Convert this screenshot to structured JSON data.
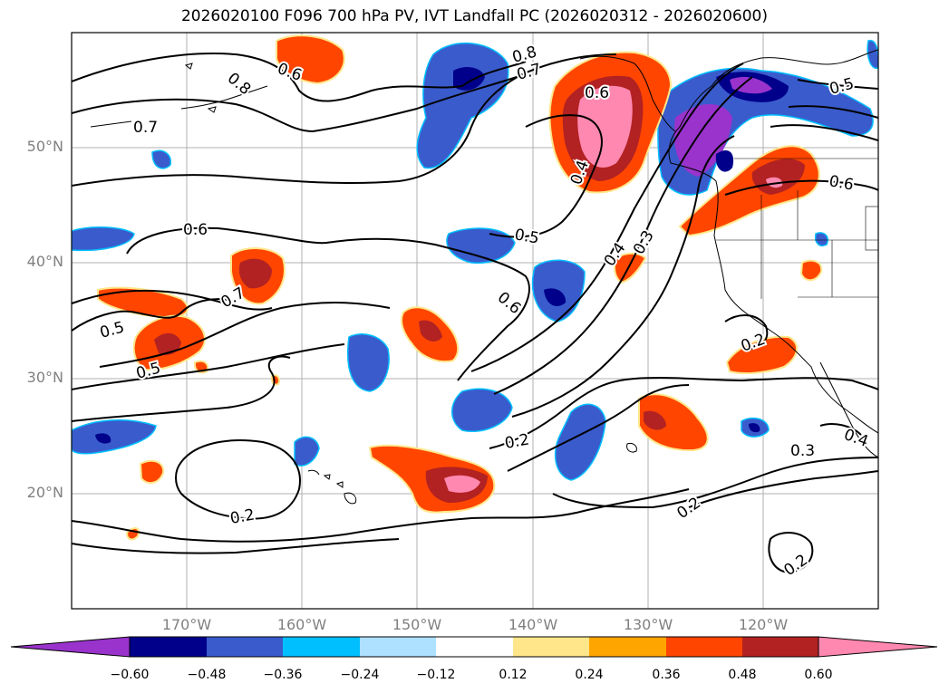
{
  "title": "2026020100 F096 700 hPa PV, IVT Landfall PC (2026020312 - 2026020600)",
  "lat_labels": [
    "50°N",
    "40°N",
    "30°N",
    "20°N"
  ],
  "lon_labels": [
    "170°W",
    "160°W",
    "150°W",
    "140°W",
    "130°W",
    "120°W"
  ],
  "colorbar": {
    "ticks": [
      "−0.60",
      "−0.48",
      "−0.36",
      "−0.24",
      "−0.12",
      "0.12",
      "0.24",
      "0.36",
      "0.48",
      "0.60"
    ],
    "colors": [
      "#9933cc",
      "#00008b",
      "#3a5bcc",
      "#00bfff",
      "#aee0ff",
      "#ffffff",
      "#ffe68a",
      "#ffa500",
      "#ff4500",
      "#b22222",
      "#ff88b0"
    ]
  },
  "contour_labels": [
    "0.8",
    "0.6",
    "0.7",
    "0.8",
    "0.7",
    "0.6",
    "0.4",
    "0.5",
    "0.6",
    "0.5",
    "0.6",
    "0.5",
    "0.4",
    "0.3",
    "0.7",
    "0.5",
    "0.5",
    "0.6",
    "0.2",
    "0.2",
    "0.2",
    "0.3",
    "0.2",
    "0.4",
    "0.2"
  ]
}
